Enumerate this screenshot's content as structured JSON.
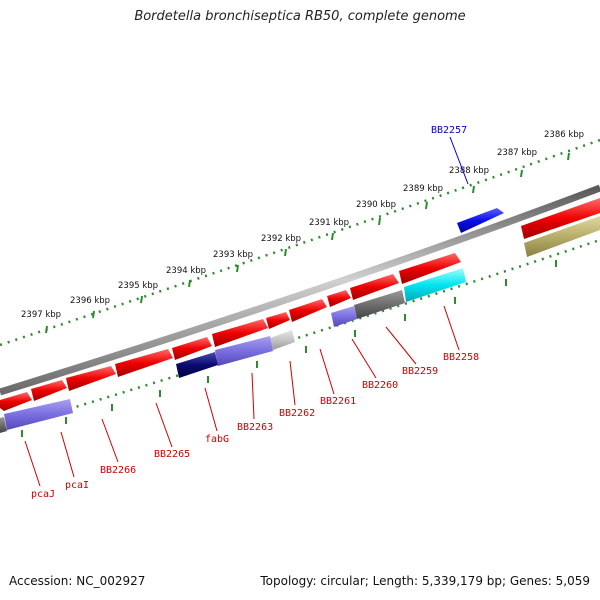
{
  "title": "Bordetella bronchiseptica RB50, complete genome",
  "accession": "Accession: NC_002927",
  "summary": "Topology: circular; Length: 5,339,179 bp; Genes: 5,059",
  "colors": {
    "backbone": "#8a8a8a",
    "dots": "#2e8b2e",
    "forward_gene": "#ee0000",
    "cds_blue": "#7a6ee0",
    "dark_navy": "#1a1a80",
    "gray": "#6e6e6e",
    "light_gray": "#c0c0c0",
    "cyan": "#00e5f0",
    "olive": "#b8ae6a",
    "highlight": "#0a10e8",
    "label_red": "#cc0000",
    "label_blue": "#0000cc"
  },
  "kbp_ticks": [
    {
      "label": "2386 kbp"
    },
    {
      "label": "2387 kbp"
    },
    {
      "label": "2388 kbp"
    },
    {
      "label": "2389 kbp"
    },
    {
      "label": "2390 kbp"
    },
    {
      "label": "2391 kbp"
    },
    {
      "label": "2392 kbp"
    },
    {
      "label": "2393 kbp"
    },
    {
      "label": "2394 kbp"
    },
    {
      "label": "2395 kbp"
    },
    {
      "label": "2396 kbp"
    },
    {
      "label": "2397 kbp"
    }
  ],
  "gene_labels": [
    {
      "label": "BB2257",
      "color": "blue"
    },
    {
      "label": "BB2258",
      "color": "red"
    },
    {
      "label": "BB2259",
      "color": "red"
    },
    {
      "label": "BB2260",
      "color": "red"
    },
    {
      "label": "BB2261",
      "color": "red"
    },
    {
      "label": "BB2262",
      "color": "red"
    },
    {
      "label": "BB2263",
      "color": "red"
    },
    {
      "label": "fabG",
      "color": "red"
    },
    {
      "label": "BB2265",
      "color": "red"
    },
    {
      "label": "BB2266",
      "color": "red"
    },
    {
      "label": "pcaI",
      "color": "red"
    },
    {
      "label": "pcaJ",
      "color": "red"
    }
  ]
}
